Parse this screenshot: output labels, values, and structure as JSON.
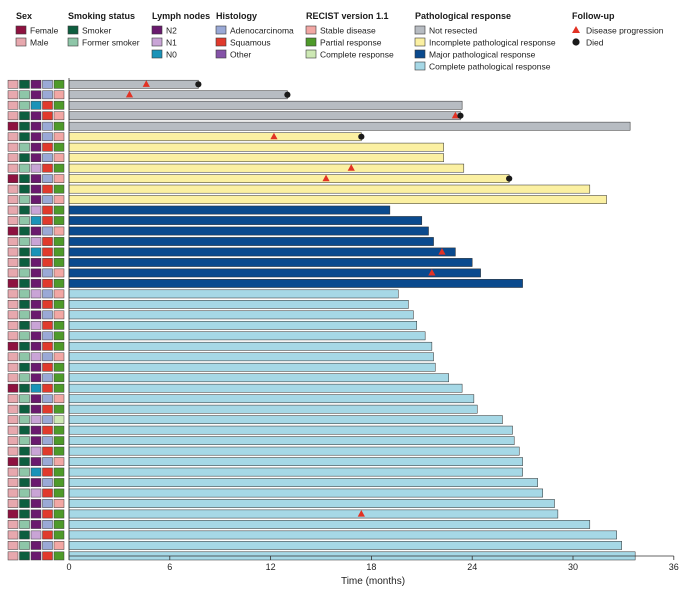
{
  "colors": {
    "sex": {
      "Female": "#8e1240",
      "Male": "#e7a8ae"
    },
    "smoking": {
      "Smoker": "#0d5e3f",
      "Former smoker": "#8ec6a8"
    },
    "lymph": {
      "N2": "#6a1a6e",
      "N1": "#c9a4d6",
      "N0": "#1a93b8"
    },
    "histology": {
      "Adenocarcinoma": "#9aa9d6",
      "Squamous": "#e03a2c",
      "Other": "#8553a8"
    },
    "recist": {
      "Stable disease": "#f2a7a4",
      "Partial response": "#4e9a2a",
      "Complete response": "#cde8b4"
    },
    "response": {
      "Not resected": "#b7bcc2",
      "Incomplete pathological response": "#fbf0a2",
      "Major pathological response": "#0a4a8e",
      "Complete pathological response": "#a6d8e6"
    },
    "progression": "#e23224",
    "death": "#1a1a1a"
  },
  "legend": {
    "groups": [
      {
        "title": "Sex",
        "items": [
          {
            "label": "Female",
            "key": "sex.Female"
          },
          {
            "label": "Male",
            "key": "sex.Male"
          }
        ]
      },
      {
        "title": "Smoking status",
        "items": [
          {
            "label": "Smoker",
            "key": "smoking.Smoker"
          },
          {
            "label": "Former smoker",
            "key": "smoking.Former smoker"
          }
        ]
      },
      {
        "title": "Lymph nodes",
        "items": [
          {
            "label": "N2",
            "key": "lymph.N2"
          },
          {
            "label": "N1",
            "key": "lymph.N1"
          },
          {
            "label": "N0",
            "key": "lymph.N0"
          }
        ]
      },
      {
        "title": "Histology",
        "items": [
          {
            "label": "Adenocarcinoma",
            "key": "histology.Adenocarcinoma"
          },
          {
            "label": "Squamous",
            "key": "histology.Squamous"
          },
          {
            "label": "Other",
            "key": "histology.Other"
          }
        ]
      },
      {
        "title": "RECIST version 1.1",
        "items": [
          {
            "label": "Stable disease",
            "key": "recist.Stable disease"
          },
          {
            "label": "Partial response",
            "key": "recist.Partial response"
          },
          {
            "label": "Complete response",
            "key": "recist.Complete response"
          }
        ]
      },
      {
        "title": "Pathological response",
        "items": [
          {
            "label": "Not resected",
            "key": "response.Not resected"
          },
          {
            "label": "Incomplete pathological response",
            "key": "response.Incomplete pathological response"
          },
          {
            "label": "Major pathological response",
            "key": "response.Major pathological response"
          },
          {
            "label": "Complete pathological response",
            "key": "response.Complete pathological response"
          }
        ]
      },
      {
        "title": "Follow-up",
        "items": [
          {
            "label": "Disease progression",
            "marker": "triangle"
          },
          {
            "label": "Died",
            "marker": "circle"
          }
        ]
      }
    ]
  },
  "chart_data": {
    "type": "swimmer",
    "xlabel": "Time (months)",
    "xlim": [
      0,
      36
    ],
    "xticks": [
      0,
      6,
      12,
      18,
      24,
      30,
      36
    ],
    "patients": [
      {
        "sex": "Male",
        "smoking": "Smoker",
        "lymph": "N2",
        "histology": "Adenocarcinoma",
        "recist": "Partial response",
        "response": "Not resected",
        "duration": 7.7,
        "progression": 4.6,
        "death": 7.7
      },
      {
        "sex": "Male",
        "smoking": "Former smoker",
        "lymph": "N2",
        "histology": "Adenocarcinoma",
        "recist": "Stable disease",
        "response": "Not resected",
        "duration": 13.0,
        "progression": 3.6,
        "death": 13.0
      },
      {
        "sex": "Male",
        "smoking": "Former smoker",
        "lymph": "N0",
        "histology": "Squamous",
        "recist": "Partial response",
        "response": "Not resected",
        "duration": 23.4,
        "progression": null,
        "death": null
      },
      {
        "sex": "Male",
        "smoking": "Smoker",
        "lymph": "N2",
        "histology": "Squamous",
        "recist": "Stable disease",
        "response": "Not resected",
        "duration": 23.3,
        "progression": 23.0,
        "death": 23.3
      },
      {
        "sex": "Female",
        "smoking": "Smoker",
        "lymph": "N2",
        "histology": "Adenocarcinoma",
        "recist": "Partial response",
        "response": "Not resected",
        "duration": 33.4,
        "progression": null,
        "death": null
      },
      {
        "sex": "Male",
        "smoking": "Smoker",
        "lymph": "N2",
        "histology": "Adenocarcinoma",
        "recist": "Stable disease",
        "response": "Incomplete pathological response",
        "duration": 17.4,
        "progression": 12.2,
        "death": 17.4
      },
      {
        "sex": "Male",
        "smoking": "Former smoker",
        "lymph": "N2",
        "histology": "Squamous",
        "recist": "Partial response",
        "response": "Incomplete pathological response",
        "duration": 22.3,
        "progression": null,
        "death": null
      },
      {
        "sex": "Male",
        "smoking": "Smoker",
        "lymph": "N2",
        "histology": "Adenocarcinoma",
        "recist": "Stable disease",
        "response": "Incomplete pathological response",
        "duration": 22.3,
        "progression": null,
        "death": null
      },
      {
        "sex": "Male",
        "smoking": "Former smoker",
        "lymph": "N1",
        "histology": "Squamous",
        "recist": "Partial response",
        "response": "Incomplete pathological response",
        "duration": 23.5,
        "progression": 16.8,
        "death": null
      },
      {
        "sex": "Female",
        "smoking": "Smoker",
        "lymph": "N2",
        "histology": "Adenocarcinoma",
        "recist": "Stable disease",
        "response": "Incomplete pathological response",
        "duration": 26.2,
        "progression": 15.3,
        "death": 26.2
      },
      {
        "sex": "Male",
        "smoking": "Smoker",
        "lymph": "N2",
        "histology": "Squamous",
        "recist": "Partial response",
        "response": "Incomplete pathological response",
        "duration": 31.0,
        "progression": null,
        "death": null
      },
      {
        "sex": "Male",
        "smoking": "Former smoker",
        "lymph": "N2",
        "histology": "Adenocarcinoma",
        "recist": "Stable disease",
        "response": "Incomplete pathological response",
        "duration": 32.0,
        "progression": null,
        "death": null
      },
      {
        "sex": "Male",
        "smoking": "Smoker",
        "lymph": "N1",
        "histology": "Squamous",
        "recist": "Partial response",
        "response": "Major pathological response",
        "duration": 19.1,
        "progression": null,
        "death": null
      },
      {
        "sex": "Male",
        "smoking": "Former smoker",
        "lymph": "N0",
        "histology": "Squamous",
        "recist": "Partial response",
        "response": "Major pathological response",
        "duration": 21.0,
        "progression": null,
        "death": null
      },
      {
        "sex": "Female",
        "smoking": "Smoker",
        "lymph": "N2",
        "histology": "Adenocarcinoma",
        "recist": "Stable disease",
        "response": "Major pathological response",
        "duration": 21.4,
        "progression": null,
        "death": null
      },
      {
        "sex": "Male",
        "smoking": "Former smoker",
        "lymph": "N1",
        "histology": "Squamous",
        "recist": "Partial response",
        "response": "Major pathological response",
        "duration": 21.7,
        "progression": null,
        "death": null
      },
      {
        "sex": "Male",
        "smoking": "Smoker",
        "lymph": "N0",
        "histology": "Squamous",
        "recist": "Partial response",
        "response": "Major pathological response",
        "duration": 23.0,
        "progression": 22.2,
        "death": null
      },
      {
        "sex": "Male",
        "smoking": "Smoker",
        "lymph": "N2",
        "histology": "Squamous",
        "recist": "Partial response",
        "response": "Major pathological response",
        "duration": 24.0,
        "progression": null,
        "death": null
      },
      {
        "sex": "Male",
        "smoking": "Former smoker",
        "lymph": "N2",
        "histology": "Adenocarcinoma",
        "recist": "Stable disease",
        "response": "Major pathological response",
        "duration": 24.5,
        "progression": 21.6,
        "death": null
      },
      {
        "sex": "Female",
        "smoking": "Smoker",
        "lymph": "N2",
        "histology": "Squamous",
        "recist": "Partial response",
        "response": "Major pathological response",
        "duration": 27.0,
        "progression": null,
        "death": null
      },
      {
        "sex": "Male",
        "smoking": "Former smoker",
        "lymph": "N1",
        "histology": "Adenocarcinoma",
        "recist": "Stable disease",
        "response": "Complete pathological response",
        "duration": 19.6,
        "progression": null,
        "death": null
      },
      {
        "sex": "Male",
        "smoking": "Smoker",
        "lymph": "N2",
        "histology": "Squamous",
        "recist": "Partial response",
        "response": "Complete pathological response",
        "duration": 20.2,
        "progression": null,
        "death": null
      },
      {
        "sex": "Male",
        "smoking": "Former smoker",
        "lymph": "N2",
        "histology": "Adenocarcinoma",
        "recist": "Stable disease",
        "response": "Complete pathological response",
        "duration": 20.5,
        "progression": null,
        "death": null
      },
      {
        "sex": "Male",
        "smoking": "Smoker",
        "lymph": "N1",
        "histology": "Squamous",
        "recist": "Partial response",
        "response": "Complete pathological response",
        "duration": 20.7,
        "progression": null,
        "death": null
      },
      {
        "sex": "Male",
        "smoking": "Former smoker",
        "lymph": "N2",
        "histology": "Adenocarcinoma",
        "recist": "Partial response",
        "response": "Complete pathological response",
        "duration": 21.2,
        "progression": null,
        "death": null
      },
      {
        "sex": "Female",
        "smoking": "Smoker",
        "lymph": "N2",
        "histology": "Squamous",
        "recist": "Partial response",
        "response": "Complete pathological response",
        "duration": 21.6,
        "progression": null,
        "death": null
      },
      {
        "sex": "Male",
        "smoking": "Former smoker",
        "lymph": "N1",
        "histology": "Adenocarcinoma",
        "recist": "Stable disease",
        "response": "Complete pathological response",
        "duration": 21.7,
        "progression": null,
        "death": null
      },
      {
        "sex": "Male",
        "smoking": "Smoker",
        "lymph": "N2",
        "histology": "Squamous",
        "recist": "Partial response",
        "response": "Complete pathological response",
        "duration": 21.8,
        "progression": null,
        "death": null
      },
      {
        "sex": "Male",
        "smoking": "Former smoker",
        "lymph": "N2",
        "histology": "Adenocarcinoma",
        "recist": "Partial response",
        "response": "Complete pathological response",
        "duration": 22.6,
        "progression": null,
        "death": null
      },
      {
        "sex": "Female",
        "smoking": "Smoker",
        "lymph": "N0",
        "histology": "Squamous",
        "recist": "Partial response",
        "response": "Complete pathological response",
        "duration": 23.4,
        "progression": null,
        "death": null
      },
      {
        "sex": "Male",
        "smoking": "Former smoker",
        "lymph": "N2",
        "histology": "Adenocarcinoma",
        "recist": "Stable disease",
        "response": "Complete pathological response",
        "duration": 24.1,
        "progression": null,
        "death": null
      },
      {
        "sex": "Male",
        "smoking": "Smoker",
        "lymph": "N2",
        "histology": "Squamous",
        "recist": "Partial response",
        "response": "Complete pathological response",
        "duration": 24.3,
        "progression": null,
        "death": null
      },
      {
        "sex": "Male",
        "smoking": "Former smoker",
        "lymph": "N1",
        "histology": "Adenocarcinoma",
        "recist": "Complete response",
        "response": "Complete pathological response",
        "duration": 25.8,
        "progression": null,
        "death": null
      },
      {
        "sex": "Male",
        "smoking": "Smoker",
        "lymph": "N2",
        "histology": "Squamous",
        "recist": "Partial response",
        "response": "Complete pathological response",
        "duration": 26.4,
        "progression": null,
        "death": null
      },
      {
        "sex": "Male",
        "smoking": "Former smoker",
        "lymph": "N2",
        "histology": "Adenocarcinoma",
        "recist": "Partial response",
        "response": "Complete pathological response",
        "duration": 26.5,
        "progression": null,
        "death": null
      },
      {
        "sex": "Male",
        "smoking": "Smoker",
        "lymph": "N1",
        "histology": "Squamous",
        "recist": "Partial response",
        "response": "Complete pathological response",
        "duration": 26.8,
        "progression": null,
        "death": null
      },
      {
        "sex": "Female",
        "smoking": "Smoker",
        "lymph": "N2",
        "histology": "Adenocarcinoma",
        "recist": "Stable disease",
        "response": "Complete pathological response",
        "duration": 27.0,
        "progression": null,
        "death": null
      },
      {
        "sex": "Male",
        "smoking": "Former smoker",
        "lymph": "N0",
        "histology": "Squamous",
        "recist": "Partial response",
        "response": "Complete pathological response",
        "duration": 27.0,
        "progression": null,
        "death": null
      },
      {
        "sex": "Male",
        "smoking": "Smoker",
        "lymph": "N2",
        "histology": "Adenocarcinoma",
        "recist": "Partial response",
        "response": "Complete pathological response",
        "duration": 27.9,
        "progression": null,
        "death": null
      },
      {
        "sex": "Male",
        "smoking": "Former smoker",
        "lymph": "N1",
        "histology": "Squamous",
        "recist": "Partial response",
        "response": "Complete pathological response",
        "duration": 28.2,
        "progression": null,
        "death": null
      },
      {
        "sex": "Male",
        "smoking": "Smoker",
        "lymph": "N2",
        "histology": "Adenocarcinoma",
        "recist": "Stable disease",
        "response": "Complete pathological response",
        "duration": 28.9,
        "progression": null,
        "death": null
      },
      {
        "sex": "Female",
        "smoking": "Smoker",
        "lymph": "N2",
        "histology": "Squamous",
        "recist": "Partial response",
        "response": "Complete pathological response",
        "duration": 29.1,
        "progression": 17.4,
        "death": null
      },
      {
        "sex": "Male",
        "smoking": "Former smoker",
        "lymph": "N2",
        "histology": "Adenocarcinoma",
        "recist": "Partial response",
        "response": "Complete pathological response",
        "duration": 31.0,
        "progression": null,
        "death": null
      },
      {
        "sex": "Male",
        "smoking": "Smoker",
        "lymph": "N1",
        "histology": "Squamous",
        "recist": "Partial response",
        "response": "Complete pathological response",
        "duration": 32.6,
        "progression": null,
        "death": null
      },
      {
        "sex": "Male",
        "smoking": "Former smoker",
        "lymph": "N2",
        "histology": "Adenocarcinoma",
        "recist": "Stable disease",
        "response": "Complete pathological response",
        "duration": 32.9,
        "progression": null,
        "death": null
      },
      {
        "sex": "Male",
        "smoking": "Smoker",
        "lymph": "N2",
        "histology": "Squamous",
        "recist": "Partial response",
        "response": "Complete pathological response",
        "duration": 33.7,
        "progression": null,
        "death": null
      }
    ]
  }
}
